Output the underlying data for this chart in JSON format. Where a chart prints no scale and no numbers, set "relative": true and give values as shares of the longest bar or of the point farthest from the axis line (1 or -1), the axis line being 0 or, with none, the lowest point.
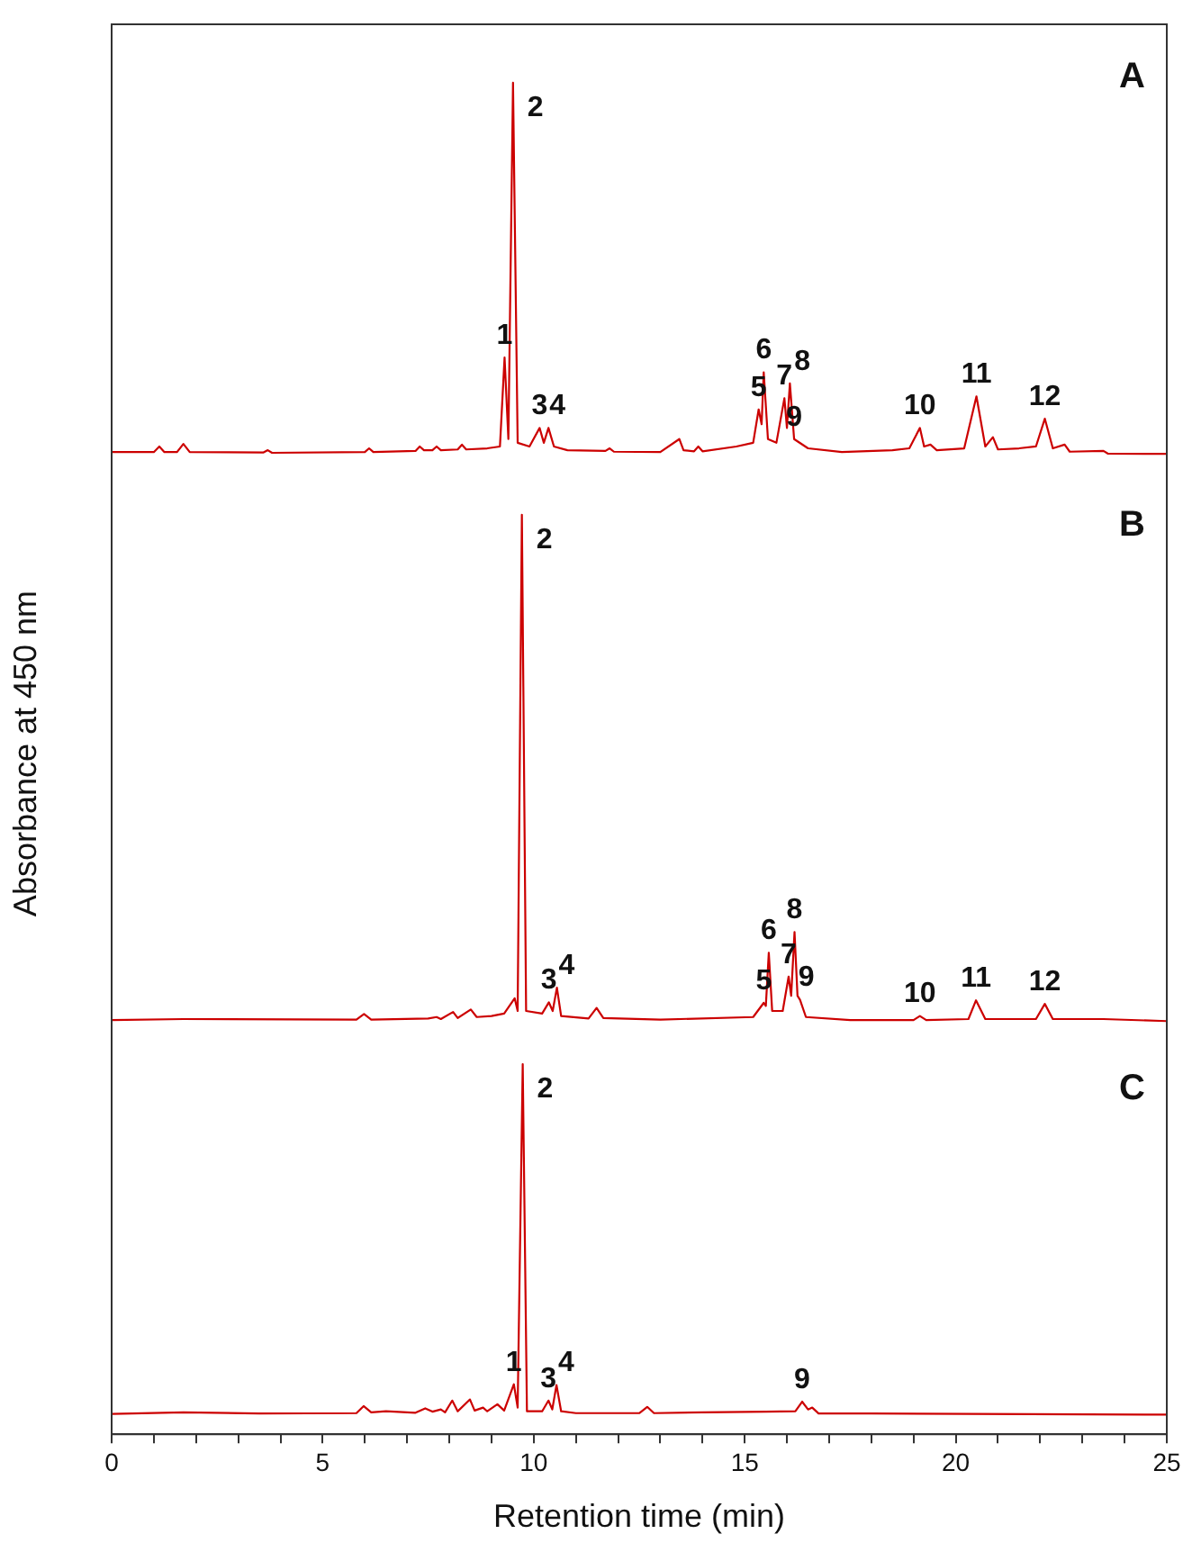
{
  "chart_data": [
    {
      "type": "line",
      "relative": true,
      "xlim": [
        0,
        25
      ],
      "tick_labels": false,
      "marker": "none",
      "line_style": "solid",
      "series": [
        {
          "color": "#cc0000",
          "x": [
            0,
            1.0,
            1.13,
            1.25,
            1.55,
            1.7,
            1.85,
            3.6,
            3.7,
            3.8,
            6.0,
            6.1,
            6.2,
            7.2,
            7.3,
            7.4,
            7.6,
            7.7,
            7.8,
            8.2,
            8.3,
            8.4,
            8.9,
            9.2,
            9.31,
            9.4,
            9.51,
            9.62,
            9.9,
            10.14,
            10.24,
            10.35,
            10.48,
            10.8,
            11.7,
            11.8,
            11.9,
            13.0,
            13.45,
            13.55,
            13.8,
            13.9,
            14.0,
            14.8,
            15.2,
            15.33,
            15.4,
            15.45,
            15.55,
            15.75,
            15.94,
            16.0,
            16.07,
            16.17,
            16.5,
            17.3,
            18.5,
            18.9,
            19.15,
            19.25,
            19.4,
            19.55,
            20.2,
            20.49,
            20.7,
            20.88,
            21.0,
            21.5,
            21.9,
            22.11,
            22.3,
            22.58,
            22.7,
            23.5,
            23.6,
            25
          ],
          "values": [
            0.005,
            0.005,
            0.02,
            0.005,
            0.005,
            0.027,
            0.005,
            0.004,
            0.01,
            0.003,
            0.005,
            0.015,
            0.005,
            0.008,
            0.02,
            0.01,
            0.01,
            0.02,
            0.01,
            0.012,
            0.025,
            0.012,
            0.015,
            0.02,
            0.26,
            0.04,
            1,
            0.03,
            0.02,
            0.07,
            0.03,
            0.07,
            0.02,
            0.01,
            0.008,
            0.015,
            0.006,
            0.005,
            0.04,
            0.01,
            0.007,
            0.02,
            0.007,
            0.02,
            0.03,
            0.12,
            0.08,
            0.22,
            0.04,
            0.03,
            0.15,
            0.07,
            0.19,
            0.04,
            0.015,
            0.005,
            0.01,
            0.015,
            0.07,
            0.02,
            0.025,
            0.01,
            0.015,
            0.155,
            0.02,
            0.045,
            0.012,
            0.015,
            0.02,
            0.095,
            0.015,
            0.025,
            0.006,
            0.008,
            0.001,
            0
          ]
        }
      ],
      "annotations": [
        "A",
        {
          "text": "1",
          "x": 9.31,
          "y": 0.26
        },
        {
          "text": "2",
          "x": 9.51,
          "y": 1
        },
        {
          "text": "3",
          "x": 10.14,
          "y": 0.07
        },
        {
          "text": "4",
          "x": 10.35,
          "y": 0.07
        },
        {
          "text": "5",
          "x": 15.33,
          "y": 0.12
        },
        {
          "text": "6",
          "x": 15.45,
          "y": 0.22
        },
        {
          "text": "7",
          "x": 15.94,
          "y": 0.15
        },
        {
          "text": "8",
          "x": 16.07,
          "y": 0.19
        },
        {
          "text": "9",
          "x": 16.17,
          "y": 0.04
        },
        {
          "text": "10",
          "x": 19.15,
          "y": 0.07
        },
        {
          "text": "11",
          "x": 20.49,
          "y": 0.155
        },
        {
          "text": "12",
          "x": 22.11,
          "y": 0.095
        }
      ]
    },
    {
      "type": "line",
      "relative": true,
      "xlim": [
        0,
        25
      ],
      "tick_labels": false,
      "marker": "none",
      "line_style": "solid",
      "ylabel": "Absorbance at 450 nm",
      "series": [
        {
          "color": "#cc0000",
          "x": [
            0,
            1.7,
            5.8,
            5.98,
            6.15,
            7.5,
            7.7,
            7.8,
            8.09,
            8.2,
            8.51,
            8.65,
            9.0,
            9.3,
            9.55,
            9.62,
            9.72,
            9.82,
            10.2,
            10.36,
            10.45,
            10.55,
            10.65,
            11.3,
            11.49,
            11.65,
            13,
            15.2,
            15.45,
            15.5,
            15.57,
            15.65,
            15.9,
            16.04,
            16.1,
            16.18,
            16.25,
            16.31,
            16.45,
            17.5,
            19.0,
            19.15,
            19.3,
            20.3,
            20.48,
            20.7,
            21.9,
            22.11,
            22.3,
            23.5,
            25
          ],
          "values": [
            0.002,
            0.004,
            0.003,
            0.014,
            0.003,
            0.005,
            0.008,
            0.004,
            0.018,
            0.006,
            0.023,
            0.008,
            0.01,
            0.015,
            0.045,
            0.02,
            1,
            0.02,
            0.015,
            0.037,
            0.02,
            0.066,
            0.01,
            0.005,
            0.026,
            0.006,
            0.003,
            0.008,
            0.036,
            0.03,
            0.135,
            0.02,
            0.02,
            0.088,
            0.05,
            0.176,
            0.05,
            0.042,
            0.008,
            0.002,
            0.002,
            0.01,
            0.002,
            0.004,
            0.041,
            0.004,
            0.004,
            0.034,
            0.004,
            0.004,
            0
          ]
        }
      ],
      "annotations": [
        "B",
        {
          "text": "2",
          "x": 9.72,
          "y": 1
        },
        {
          "text": "3",
          "x": 10.36,
          "y": 0.037
        },
        {
          "text": "4",
          "x": 10.55,
          "y": 0.066
        },
        {
          "text": "5",
          "x": 15.45,
          "y": 0.036
        },
        {
          "text": "6",
          "x": 15.57,
          "y": 0.135
        },
        {
          "text": "7",
          "x": 16.04,
          "y": 0.088
        },
        {
          "text": "8",
          "x": 16.18,
          "y": 0.176
        },
        {
          "text": "9",
          "x": 16.31,
          "y": 0.042
        },
        {
          "text": "10",
          "x": 19.15,
          "y": 0.01
        },
        {
          "text": "11",
          "x": 20.48,
          "y": 0.041
        },
        {
          "text": "12",
          "x": 22.11,
          "y": 0.034
        }
      ]
    },
    {
      "type": "line",
      "relative": true,
      "xlim": [
        0,
        25
      ],
      "tick_labels": "x",
      "marker": "none",
      "line_style": "solid",
      "xlabel": "Retention time (min)",
      "xticks": [
        0,
        {
          "value": 1,
          "label": null
        },
        {
          "value": 2,
          "label": null
        },
        {
          "value": 3,
          "label": null
        },
        {
          "value": 4,
          "label": null
        },
        5,
        {
          "value": 6,
          "label": null
        },
        {
          "value": 7,
          "label": null
        },
        {
          "value": 8,
          "label": null
        },
        {
          "value": 9,
          "label": null
        },
        10,
        {
          "value": 11,
          "label": null
        },
        {
          "value": 12,
          "label": null
        },
        {
          "value": 13,
          "label": null
        },
        {
          "value": 14,
          "label": null
        },
        15,
        {
          "value": 16,
          "label": null
        },
        {
          "value": 17,
          "label": null
        },
        {
          "value": 18,
          "label": null
        },
        {
          "value": 19,
          "label": null
        },
        20,
        {
          "value": 21,
          "label": null
        },
        {
          "value": 22,
          "label": null
        },
        {
          "value": 23,
          "label": null
        },
        {
          "value": 24,
          "label": null
        },
        25
      ],
      "series": [
        {
          "color": "#cc0000",
          "x": [
            0,
            1.7,
            3.5,
            5.8,
            5.97,
            6.15,
            6.5,
            7.2,
            7.43,
            7.6,
            7.8,
            7.9,
            8.07,
            8.2,
            8.49,
            8.6,
            8.8,
            8.9,
            9.14,
            9.3,
            9.53,
            9.62,
            9.74,
            9.84,
            10.2,
            10.35,
            10.44,
            10.54,
            10.65,
            11.0,
            12.5,
            12.69,
            12.85,
            14,
            15.5,
            16.2,
            16.36,
            16.5,
            16.6,
            16.75,
            18,
            25
          ],
          "values": [
            0.055,
            0.059,
            0.056,
            0.057,
            0.076,
            0.059,
            0.062,
            0.058,
            0.07,
            0.061,
            0.067,
            0.059,
            0.091,
            0.062,
            0.094,
            0.064,
            0.072,
            0.062,
            0.081,
            0.064,
            0.135,
            0.072,
            1,
            0.062,
            0.062,
            0.091,
            0.067,
            0.133,
            0.062,
            0.057,
            0.057,
            0.074,
            0.057,
            0.059,
            0.061,
            0.062,
            0.088,
            0.067,
            0.072,
            0.056,
            0.056,
            0.053
          ]
        }
      ],
      "annotations": [
        "C",
        {
          "text": "2",
          "x": 9.74,
          "y": 1
        },
        {
          "text": "1",
          "x": 9.53,
          "y": 0.135
        },
        {
          "text": "3",
          "x": 10.35,
          "y": 0.091
        },
        {
          "text": "4",
          "x": 10.54,
          "y": 0.133
        },
        {
          "text": "9",
          "x": 16.36,
          "y": 0.088
        }
      ]
    }
  ]
}
